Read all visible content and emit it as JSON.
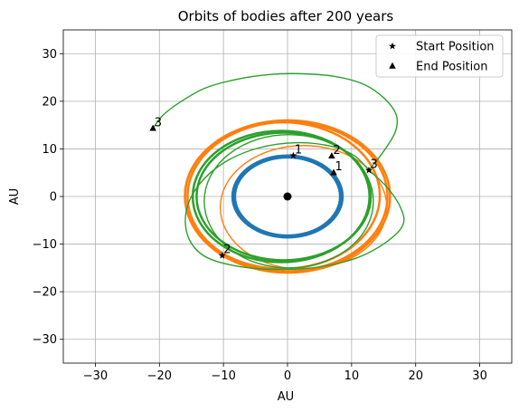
{
  "chart_data": {
    "type": "scatter",
    "title": "Orbits of bodies after 200 years",
    "xlabel": "AU",
    "ylabel": "AU",
    "xlim": [
      -35,
      35
    ],
    "ylim": [
      -35,
      35
    ],
    "xticks": [
      -30,
      -20,
      -10,
      0,
      10,
      20,
      30
    ],
    "yticks": [
      -30,
      -20,
      -10,
      0,
      10,
      20,
      30
    ],
    "xtick_labels": [
      "−30",
      "−20",
      "−10",
      "0",
      "10",
      "20",
      "30"
    ],
    "ytick_labels": [
      "−30",
      "−20",
      "−10",
      "0",
      "10",
      "20",
      "30"
    ],
    "grid": true,
    "legend_position": "top-right",
    "legend": [
      {
        "label": "Start Position",
        "marker": "star"
      },
      {
        "label": "End Position",
        "marker": "triangle"
      }
    ],
    "central_body": {
      "x": 0,
      "y": 0,
      "color": "#000000"
    },
    "series": [
      {
        "id": "1",
        "color": "#1f77b4",
        "orbits": [
          {
            "cx": 0,
            "cy": 0,
            "rx": 8.6,
            "ry": 8.6,
            "width": 2.5
          },
          {
            "cx": 0,
            "cy": 0,
            "rx": 8.4,
            "ry": 8.4,
            "width": 2.5
          },
          {
            "cx": 0,
            "cy": 0,
            "rx": 8.2,
            "ry": 8.2,
            "width": 2.5
          }
        ],
        "start": {
          "x": 0.9,
          "y": 8.6
        },
        "end": {
          "x": 7.2,
          "y": 5.0
        }
      },
      {
        "id": "2",
        "color": "#ff7f0e",
        "orbits": [
          {
            "cx": 0,
            "cy": 0,
            "rx": 16.0,
            "ry": 16.0,
            "width": 2.5
          },
          {
            "cx": 0,
            "cy": 0,
            "rx": 15.6,
            "ry": 15.7,
            "width": 2.5
          },
          {
            "cx": -0.8,
            "cy": 0.2,
            "rx": 15.2,
            "ry": 15.4,
            "width": 2.5
          },
          {
            "cx": 2.5,
            "cy": -2.3,
            "rx": 13.0,
            "ry": 13.0,
            "width": 1.4
          }
        ],
        "start": {
          "x": -10.2,
          "y": -12.4
        },
        "end": {
          "x": 6.9,
          "y": 8.5
        }
      },
      {
        "id": "3",
        "color": "#2ca02c",
        "orbits": [
          {
            "cx": -1.0,
            "cy": 0,
            "rx": 13.8,
            "ry": 13.8,
            "width": 2.5
          },
          {
            "cx": -0.6,
            "cy": 0,
            "rx": 13.6,
            "ry": 13.4,
            "width": 2.5
          },
          {
            "cx": 0.2,
            "cy": -1.0,
            "rx": 13.2,
            "ry": 14.0,
            "width": 1.4
          }
        ],
        "spiral": [
          [
            12.7,
            5.5
          ],
          [
            15.0,
            9.5
          ],
          [
            16.8,
            13.5
          ],
          [
            17.0,
            17.0
          ],
          [
            15.2,
            20.5
          ],
          [
            12.0,
            23.5
          ],
          [
            7.5,
            25.2
          ],
          [
            2.0,
            25.8
          ],
          [
            -3.0,
            25.6
          ],
          [
            -8.0,
            24.6
          ],
          [
            -12.8,
            22.8
          ],
          [
            -16.8,
            19.8
          ],
          [
            -19.5,
            17.0
          ],
          [
            -21.0,
            14.3
          ]
        ],
        "spiral_inner": [
          [
            12.7,
            5.5
          ],
          [
            15.5,
            2.0
          ],
          [
            17.7,
            -2.5
          ],
          [
            18.0,
            -6.0
          ],
          [
            15.5,
            -9.5
          ],
          [
            11.0,
            -12.8
          ],
          [
            5.0,
            -14.8
          ],
          [
            -1.5,
            -15.3
          ],
          [
            -8.0,
            -14.6
          ],
          [
            -13.0,
            -12.5
          ],
          [
            -15.5,
            -8.5
          ],
          [
            -15.8,
            -3.0
          ],
          [
            -13.8,
            2.5
          ],
          [
            -9.8,
            7.2
          ],
          [
            -4.5,
            10.2
          ],
          [
            1.5,
            11.3
          ],
          [
            7.0,
            10.5
          ],
          [
            10.5,
            8.5
          ],
          [
            12.7,
            5.5
          ]
        ],
        "start": {
          "x": 12.7,
          "y": 5.5
        },
        "end": {
          "x": -21.0,
          "y": 14.3
        }
      }
    ]
  }
}
